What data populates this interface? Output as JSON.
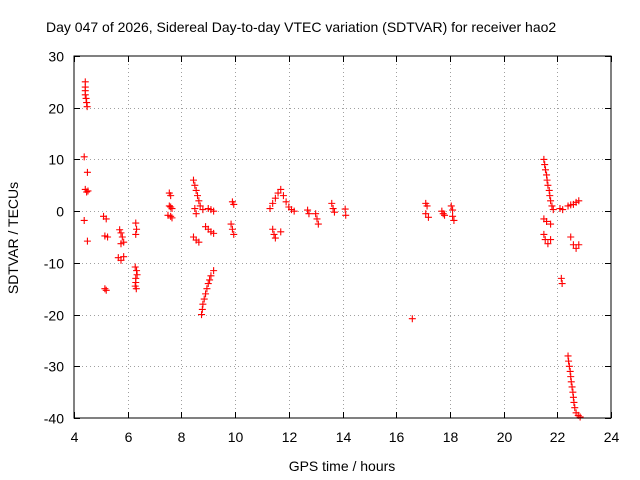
{
  "chart_data": {
    "type": "scatter",
    "title": "Day 047 of 2026, Sidereal Day-to-day VTEC variation (SDTVAR) for receiver hao2",
    "xlabel": "GPS time / hours",
    "ylabel": "SDTVAR / TECUs",
    "xlim": [
      4,
      24
    ],
    "ylim": [
      -40,
      30
    ],
    "xticks": [
      4,
      6,
      8,
      10,
      12,
      14,
      16,
      18,
      20,
      22,
      24
    ],
    "yticks": [
      -40,
      -30,
      -20,
      -10,
      0,
      10,
      20,
      30
    ],
    "grid": true,
    "marker": "+",
    "marker_color": "#ff0000",
    "series": [
      {
        "name": "SDTVAR",
        "points": [
          [
            4.42,
            25.0
          ],
          [
            4.42,
            24.0
          ],
          [
            4.42,
            23.3
          ],
          [
            4.42,
            22.5
          ],
          [
            4.45,
            21.8
          ],
          [
            4.47,
            21.0
          ],
          [
            4.49,
            20.2
          ],
          [
            4.38,
            10.5
          ],
          [
            4.5,
            7.5
          ],
          [
            4.42,
            4.2
          ],
          [
            4.47,
            3.7
          ],
          [
            4.52,
            3.9
          ],
          [
            4.38,
            -1.8
          ],
          [
            4.5,
            -5.8
          ],
          [
            5.1,
            -1.0
          ],
          [
            5.2,
            -1.5
          ],
          [
            5.15,
            -4.8
          ],
          [
            5.25,
            -5.0
          ],
          [
            5.15,
            -15.0
          ],
          [
            5.2,
            -15.3
          ],
          [
            5.7,
            -3.6
          ],
          [
            5.75,
            -4.2
          ],
          [
            5.8,
            -5.0
          ],
          [
            5.75,
            -6.3
          ],
          [
            5.85,
            -6.0
          ],
          [
            5.65,
            -9.0
          ],
          [
            5.75,
            -9.5
          ],
          [
            5.85,
            -8.8
          ],
          [
            6.3,
            -2.3
          ],
          [
            6.33,
            -3.5
          ],
          [
            6.3,
            -4.5
          ],
          [
            6.28,
            -10.8
          ],
          [
            6.33,
            -11.5
          ],
          [
            6.35,
            -12.3
          ],
          [
            6.3,
            -13.0
          ],
          [
            6.3,
            -13.8
          ],
          [
            6.28,
            -14.5
          ],
          [
            6.32,
            -15.0
          ],
          [
            7.55,
            3.5
          ],
          [
            7.6,
            3.0
          ],
          [
            7.55,
            1.0
          ],
          [
            7.6,
            0.8
          ],
          [
            7.65,
            0.5
          ],
          [
            7.5,
            -0.8
          ],
          [
            7.6,
            -1.0
          ],
          [
            7.65,
            -1.3
          ],
          [
            8.45,
            6.0
          ],
          [
            8.5,
            5.0
          ],
          [
            8.55,
            4.0
          ],
          [
            8.6,
            3.0
          ],
          [
            8.65,
            2.0
          ],
          [
            8.7,
            1.0
          ],
          [
            8.8,
            0.3
          ],
          [
            8.5,
            0.5
          ],
          [
            8.55,
            -0.5
          ],
          [
            8.45,
            -5.0
          ],
          [
            8.55,
            -5.6
          ],
          [
            8.65,
            -6.0
          ],
          [
            8.9,
            -3.0
          ],
          [
            9.0,
            -3.5
          ],
          [
            9.1,
            -4.0
          ],
          [
            9.2,
            -4.3
          ],
          [
            9.0,
            0.5
          ],
          [
            9.1,
            0.3
          ],
          [
            9.2,
            0.0
          ],
          [
            8.75,
            -20.0
          ],
          [
            8.78,
            -19.0
          ],
          [
            8.8,
            -18.0
          ],
          [
            8.85,
            -17.0
          ],
          [
            8.9,
            -16.0
          ],
          [
            8.95,
            -15.0
          ],
          [
            9.0,
            -14.0
          ],
          [
            9.05,
            -13.3
          ],
          [
            9.1,
            -12.5
          ],
          [
            9.2,
            -11.5
          ],
          [
            9.9,
            1.8
          ],
          [
            9.95,
            1.3
          ],
          [
            9.85,
            -2.5
          ],
          [
            9.9,
            -3.5
          ],
          [
            9.95,
            -4.5
          ],
          [
            11.3,
            0.5
          ],
          [
            11.4,
            1.5
          ],
          [
            11.5,
            2.5
          ],
          [
            11.6,
            3.5
          ],
          [
            11.7,
            4.2
          ],
          [
            11.8,
            3.0
          ],
          [
            11.9,
            1.8
          ],
          [
            12.0,
            0.8
          ],
          [
            12.1,
            0.3
          ],
          [
            12.2,
            0.0
          ],
          [
            11.4,
            -3.5
          ],
          [
            11.45,
            -4.5
          ],
          [
            11.5,
            -5.2
          ],
          [
            11.7,
            -4.0
          ],
          [
            12.7,
            0.2
          ],
          [
            12.75,
            -0.5
          ],
          [
            13.0,
            -0.5
          ],
          [
            13.05,
            -1.5
          ],
          [
            13.1,
            -2.5
          ],
          [
            13.6,
            1.5
          ],
          [
            13.65,
            0.5
          ],
          [
            13.7,
            -0.2
          ],
          [
            14.1,
            0.4
          ],
          [
            14.12,
            -0.8
          ],
          [
            16.6,
            -20.8
          ],
          [
            17.1,
            1.5
          ],
          [
            17.15,
            1.0
          ],
          [
            17.1,
            -0.5
          ],
          [
            17.2,
            -1.2
          ],
          [
            17.7,
            0.0
          ],
          [
            17.75,
            -0.5
          ],
          [
            17.8,
            -0.8
          ],
          [
            18.05,
            1.0
          ],
          [
            18.1,
            0.2
          ],
          [
            18.1,
            -1.0
          ],
          [
            18.15,
            -1.8
          ],
          [
            21.5,
            10.0
          ],
          [
            21.53,
            9.0
          ],
          [
            21.56,
            8.0
          ],
          [
            21.6,
            7.0
          ],
          [
            21.62,
            6.0
          ],
          [
            21.65,
            5.0
          ],
          [
            21.7,
            4.0
          ],
          [
            21.72,
            3.0
          ],
          [
            21.75,
            2.0
          ],
          [
            21.8,
            1.0
          ],
          [
            21.85,
            0.3
          ],
          [
            21.5,
            -1.5
          ],
          [
            21.6,
            -2.0
          ],
          [
            21.75,
            -2.5
          ],
          [
            21.5,
            -4.5
          ],
          [
            21.55,
            -5.5
          ],
          [
            21.65,
            -6.3
          ],
          [
            21.75,
            -5.5
          ],
          [
            22.1,
            0.5
          ],
          [
            22.2,
            0.3
          ],
          [
            22.15,
            -13.0
          ],
          [
            22.18,
            -14.0
          ],
          [
            22.4,
            1.0
          ],
          [
            22.5,
            1.2
          ],
          [
            22.6,
            1.3
          ],
          [
            22.7,
            1.7
          ],
          [
            22.8,
            2.0
          ],
          [
            22.5,
            -5.0
          ],
          [
            22.6,
            -6.5
          ],
          [
            22.7,
            -7.2
          ],
          [
            22.8,
            -6.5
          ],
          [
            22.4,
            -28.0
          ],
          [
            22.42,
            -29.0
          ],
          [
            22.45,
            -30.0
          ],
          [
            22.48,
            -31.0
          ],
          [
            22.5,
            -32.0
          ],
          [
            22.52,
            -33.0
          ],
          [
            22.55,
            -34.0
          ],
          [
            22.58,
            -35.0
          ],
          [
            22.6,
            -36.0
          ],
          [
            22.62,
            -37.0
          ],
          [
            22.65,
            -38.0
          ],
          [
            22.7,
            -39.0
          ],
          [
            22.78,
            -39.5
          ],
          [
            22.85,
            -39.8
          ]
        ]
      }
    ]
  }
}
